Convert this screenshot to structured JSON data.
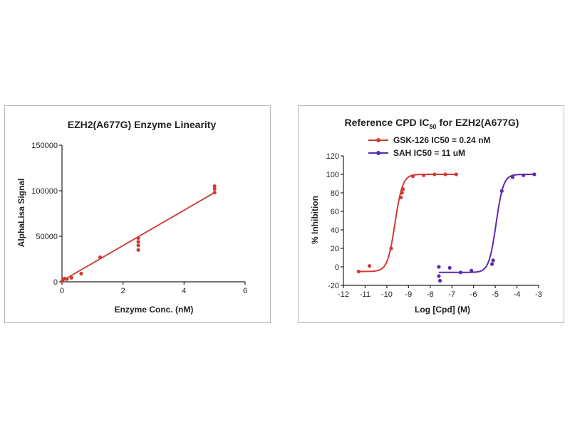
{
  "chart_data": [
    {
      "type": "scatter",
      "title": "EZH2(A677G) Enzyme Linearity",
      "xlabel": "Enzyme Conc. (nM)",
      "ylabel": "AlphaLisa Signal",
      "xlim": [
        0,
        6
      ],
      "ylim": [
        0,
        150000
      ],
      "xticks": [
        0,
        2,
        4,
        6
      ],
      "yticks": [
        0,
        50000,
        100000,
        150000
      ],
      "color": "#d03b33",
      "points": [
        {
          "x": 0,
          "y": 500
        },
        {
          "x": 0.04,
          "y": 2500
        },
        {
          "x": 0.08,
          "y": 3500
        },
        {
          "x": 0.16,
          "y": 3000
        },
        {
          "x": 0.31,
          "y": 4500
        },
        {
          "x": 0.63,
          "y": 9000
        },
        {
          "x": 1.25,
          "y": 27000
        },
        {
          "x": 2.5,
          "y": 35000
        },
        {
          "x": 2.5,
          "y": 40000
        },
        {
          "x": 2.5,
          "y": 44000
        },
        {
          "x": 2.5,
          "y": 48000
        },
        {
          "x": 5,
          "y": 98000
        },
        {
          "x": 5,
          "y": 102000
        },
        {
          "x": 5,
          "y": 105000
        }
      ],
      "fit_line": {
        "x": [
          0,
          5
        ],
        "y": [
          1000,
          98000
        ]
      }
    },
    {
      "type": "scatter",
      "title_main": "Reference CPD IC",
      "title_sub": "50",
      "title_end": " for EZH2(A677G)",
      "xlabel": "Log [Cpd] (M)",
      "ylabel": "% Inhibition",
      "xlim": [
        -12,
        -3
      ],
      "ylim": [
        -20,
        120
      ],
      "xticks": [
        -12,
        -11,
        -10,
        -9,
        -8,
        -7,
        -6,
        -5,
        -4,
        -3
      ],
      "yticks": [
        -20,
        0,
        20,
        40,
        60,
        80,
        100,
        120
      ],
      "series": [
        {
          "name": "GSK-126 IC50 = 0.24 nM",
          "color": "#d03b33",
          "points": [
            {
              "x": -11.3,
              "y": -5
            },
            {
              "x": -10.8,
              "y": 1
            },
            {
              "x": -9.8,
              "y": 20
            },
            {
              "x": -9.35,
              "y": 75
            },
            {
              "x": -9.3,
              "y": 80
            },
            {
              "x": -9.25,
              "y": 84
            },
            {
              "x": -8.8,
              "y": 98
            },
            {
              "x": -8.3,
              "y": 99
            },
            {
              "x": -7.8,
              "y": 100
            },
            {
              "x": -7.3,
              "y": 100
            },
            {
              "x": -6.8,
              "y": 100
            }
          ],
          "fit": {
            "bottom": -5,
            "top": 100,
            "logIC50": -9.62,
            "hill": 2.5,
            "x_range": [
              -11.3,
              -6.8
            ]
          }
        },
        {
          "name": "SAH IC50 = 11 uM",
          "color": "#5b2bb0",
          "points": [
            {
              "x": -7.6,
              "y": 0
            },
            {
              "x": -7.6,
              "y": -10
            },
            {
              "x": -7.55,
              "y": -15
            },
            {
              "x": -7.1,
              "y": -1
            },
            {
              "x": -6.6,
              "y": -6
            },
            {
              "x": -6.1,
              "y": -4
            },
            {
              "x": -5.15,
              "y": 3
            },
            {
              "x": -5.1,
              "y": 7
            },
            {
              "x": -4.7,
              "y": 82
            },
            {
              "x": -4.2,
              "y": 97
            },
            {
              "x": -3.7,
              "y": 99
            },
            {
              "x": -3.2,
              "y": 100
            }
          ],
          "fit": {
            "bottom": -6,
            "top": 100,
            "logIC50": -4.96,
            "hill": 2.6,
            "x_range": [
              -7.6,
              -3.2
            ]
          }
        }
      ]
    }
  ]
}
